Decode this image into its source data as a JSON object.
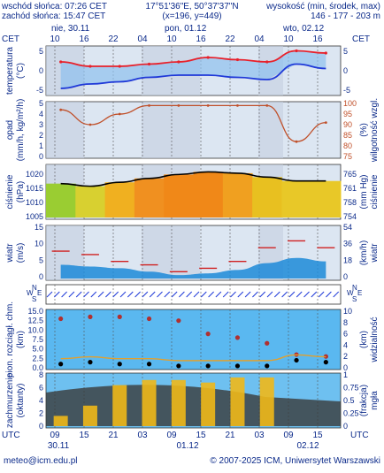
{
  "header": {
    "sunrise": "wschód słońca: 07:26 CET",
    "sunset": "zachód słońca: 15:47 CET",
    "coords": "17°51'36\"E, 50°37'37\"N",
    "grid": "(x=196, y=449)",
    "height_title": "wysokość (min, środek, max)",
    "height_values": "146 - 177 - 203 m"
  },
  "timeline": {
    "tz_top": "CET",
    "tz_bottom": "UTC",
    "day_labels": [
      "nie, 30.11",
      "pon, 01.12",
      "wto, 02.12"
    ],
    "top_hours": [
      "10",
      "16",
      "22",
      "04",
      "10",
      "16",
      "22",
      "04",
      "10",
      "16"
    ],
    "bottom_hours": [
      "09",
      "15",
      "21",
      "03",
      "09",
      "15",
      "21",
      "03",
      "09",
      "15"
    ],
    "bottom_dates": [
      "30.11",
      "01.12",
      "02.12"
    ]
  },
  "panels": {
    "temperature": {
      "label_left": "temperatura",
      "unit_left": "(°C)",
      "ticks": [
        "5",
        "0",
        "-5"
      ]
    },
    "precip": {
      "label_left": "opad",
      "unit_left": "(mm/h, kg/m²/h)",
      "label_right": "wilgotność wzgl.",
      "unit_right": "(%)",
      "ticks_left": [
        "5",
        "4",
        "3",
        "2",
        "1",
        "0"
      ],
      "ticks_right": [
        "100",
        "95",
        "90",
        "85",
        "80",
        "75"
      ]
    },
    "pressure": {
      "label_left": "ciśnienie",
      "unit_left": "(hPa)",
      "label_right": "ciśnienie",
      "unit_right": "(mm Hg)",
      "ticks_left": [
        "1020",
        "1015",
        "1010",
        "1005"
      ],
      "ticks_right": [
        "765",
        "761",
        "758",
        "754"
      ]
    },
    "wind": {
      "label_left": "wiatr",
      "unit_left": "(m/s)",
      "label_right": "wiatr",
      "unit_right": "(km/h)",
      "ticks_left": [
        "15",
        "10",
        "5",
        "0"
      ],
      "ticks_right": [
        "54",
        "36",
        "18",
        "0"
      ]
    },
    "direction": {
      "compass_left": [
        "W",
        "N",
        "E",
        "S"
      ],
      "compass_right": [
        "W",
        "N",
        "E",
        "S"
      ]
    },
    "cloudbase": {
      "label_left": "pion. rozciągł. chm.",
      "unit_left": "(km)",
      "label_right": "widzialność",
      "unit_right": "(km)",
      "ticks_left": [
        "15.0",
        "12.5",
        "10.0",
        "7.5",
        "5.0",
        "2.5",
        "0.0"
      ],
      "ticks_right": [
        "10",
        "8",
        "6",
        "4",
        "2",
        "0"
      ]
    },
    "cloudcover": {
      "label_left": "zachmurzenie",
      "unit_left": "(oktanty)",
      "label_right": "mgła",
      "unit_right": "(frakcja)",
      "ticks_left": [
        "8",
        "6",
        "4",
        "2",
        "0"
      ],
      "ticks_right": [
        "1",
        "0.75",
        "0.5",
        "0.25",
        "0"
      ]
    }
  },
  "footer": {
    "email": "meteo@icm.edu.pl",
    "copyright": "© 2007-2025 ICM, Uniwersytet Warszawski"
  },
  "colors": {
    "temp_max": "#e8202a",
    "temp_dew": "#1f39d8",
    "humidity": "#c0502a",
    "pressure_line": "#000000",
    "wind_gust": "#d02020",
    "wind_fill": "#1c8ad8",
    "visibility": "#e0a030",
    "fog_bar": "#f0b818"
  },
  "chart_data": [
    {
      "type": "line",
      "title": "temperatura",
      "x": [
        "30.11 09",
        "30.11 15",
        "30.11 21",
        "01.12 03",
        "01.12 09",
        "01.12 15",
        "01.12 21",
        "02.12 03",
        "02.12 09",
        "02.12 15"
      ],
      "series": [
        {
          "name": "max",
          "values": [
            2,
            1,
            1,
            1.5,
            2,
            3,
            2.5,
            2,
            4.5,
            4
          ]
        },
        {
          "name": "min",
          "values": [
            -4,
            -3,
            -2.5,
            -1.5,
            -1,
            -1,
            -1.5,
            -2,
            1.5,
            0.5
          ]
        }
      ],
      "ylim": [
        -5,
        5
      ]
    },
    {
      "type": "line",
      "title": "wilgotność wzgl.",
      "x": [
        "30.11 09",
        "30.11 15",
        "30.11 21",
        "01.12 03",
        "01.12 09",
        "01.12 15",
        "01.12 21",
        "02.12 03",
        "02.12 09",
        "02.12 15"
      ],
      "series": [
        {
          "name": "wilgotność",
          "values": [
            97,
            90,
            95,
            99,
            99,
            99,
            99,
            99,
            82,
            91
          ]
        }
      ],
      "ylim": [
        75,
        100
      ]
    },
    {
      "type": "line",
      "title": "ciśnienie",
      "x": [
        "30.11 09",
        "30.11 15",
        "30.11 21",
        "01.12 03",
        "01.12 09",
        "01.12 15",
        "01.12 21",
        "02.12 03",
        "02.12 09",
        "02.12 15"
      ],
      "series": [
        {
          "name": "ciśnienie",
          "values": [
            1018,
            1017,
            1018.5,
            1020,
            1021.5,
            1022.5,
            1022,
            1020.5,
            1019,
            1019
          ]
        }
      ],
      "ylim": [
        1005,
        1024
      ]
    },
    {
      "type": "area",
      "title": "wiatr",
      "x": [
        "30.11 09",
        "30.11 15",
        "30.11 21",
        "01.12 03",
        "01.12 09",
        "01.12 15",
        "01.12 21",
        "02.12 03",
        "02.12 09",
        "02.12 15"
      ],
      "series": [
        {
          "name": "porywy",
          "values": [
            8,
            7,
            5,
            4,
            2,
            3,
            5,
            9,
            11,
            9
          ]
        },
        {
          "name": "wiatr",
          "values": [
            4,
            3.5,
            3,
            2,
            1,
            1.5,
            2.5,
            4.5,
            6,
            5
          ]
        }
      ],
      "ylim": [
        0,
        15
      ]
    },
    {
      "type": "scatter",
      "title": "pion. rozciągł. chm.",
      "x": [
        "30.11 09",
        "30.11 15",
        "30.11 21",
        "01.12 03",
        "01.12 09",
        "01.12 15",
        "01.12 21",
        "02.12 03",
        "02.12 09",
        "02.12 15"
      ],
      "series": [
        {
          "name": "górna",
          "values": [
            13,
            13.5,
            13.5,
            13,
            12.5,
            9,
            8,
            6.5,
            3.5,
            3
          ]
        },
        {
          "name": "dolna",
          "values": [
            1,
            1.5,
            1,
            1,
            0.5,
            0.5,
            0.5,
            0.5,
            2,
            1.5
          ]
        }
      ],
      "ylim": [
        0,
        15
      ]
    },
    {
      "type": "bar",
      "title": "zachmurzenie",
      "x": [
        "30.11 09",
        "30.11 15",
        "30.11 21",
        "01.12 03",
        "01.12 09",
        "01.12 15",
        "01.12 21",
        "02.12 03",
        "02.12 09",
        "02.12 15"
      ],
      "series": [
        {
          "name": "mgła",
          "values": [
            0.2,
            0.4,
            0.8,
            0.9,
            0.9,
            0.85,
            0.95,
            0.95,
            0,
            0
          ]
        }
      ],
      "ylim": [
        0,
        1
      ]
    }
  ]
}
